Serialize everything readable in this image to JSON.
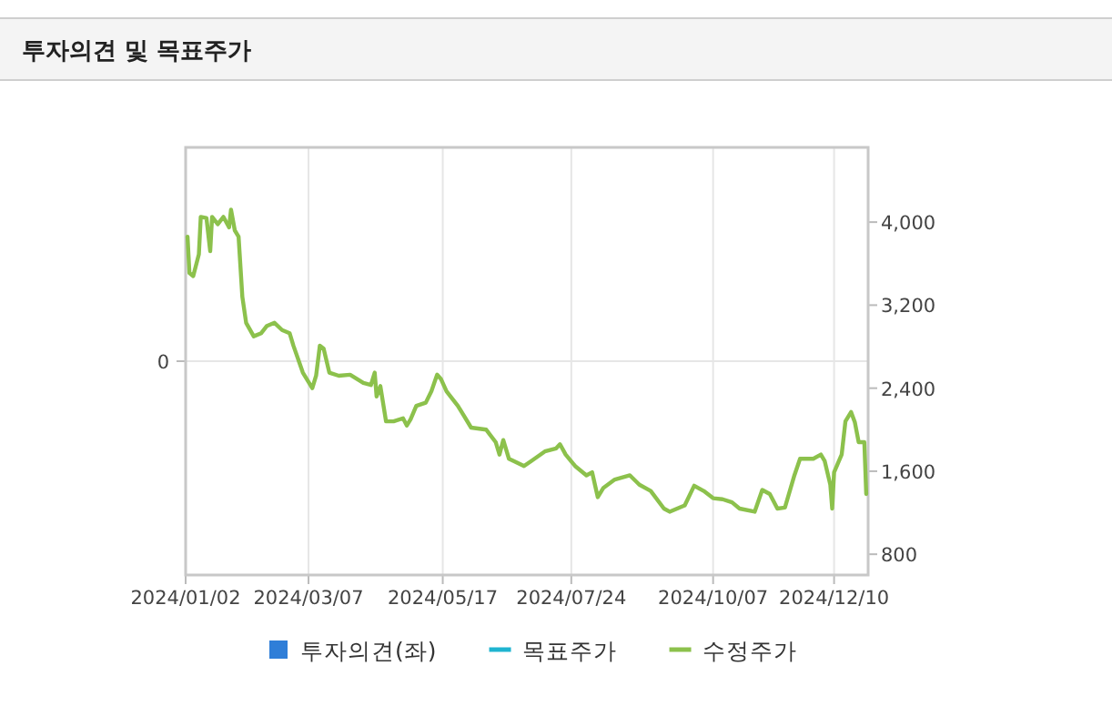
{
  "chart_data": {
    "type": "line",
    "title": "투자의견 및 목표주가",
    "annotations": [
      "0"
    ],
    "y2lim": [
      600,
      4720
    ],
    "y2ticks": [
      {
        "value": 800,
        "label": "800"
      },
      {
        "value": 1600,
        "label": "1,600"
      },
      {
        "value": 2400,
        "label": "2,400"
      },
      {
        "value": 3200,
        "label": "3,200"
      },
      {
        "value": 4000,
        "label": "4,000"
      }
    ],
    "xlim": [
      "2024-01-02",
      "2024-12-28"
    ],
    "xticks": [
      {
        "value": "2024-01-02",
        "label": "2024/01/02"
      },
      {
        "value": "2024-03-07",
        "label": "2024/03/07"
      },
      {
        "value": "2024-05-17",
        "label": "2024/05/17"
      },
      {
        "value": "2024-07-24",
        "label": "2024/07/24"
      },
      {
        "value": "2024-10-07",
        "label": "2024/10/07"
      },
      {
        "value": "2024-12-10",
        "label": "2024/12/10"
      }
    ],
    "grid": true,
    "legend": "bottom",
    "series": [
      {
        "name": "투자의견(좌)",
        "type": "bar",
        "color": "#2f7ed8"
      },
      {
        "name": "목표주가",
        "type": "line",
        "axis": "y2",
        "color": "#1fb4d0"
      },
      {
        "name": "수정주가",
        "axis": "y2",
        "color": "#8cc14c",
        "x": [
          "2024-01-03",
          "2024-01-04",
          "2024-01-06",
          "2024-01-09",
          "2024-01-10",
          "2024-01-13",
          "2024-01-15",
          "2024-01-16",
          "2024-01-19",
          "2024-01-22",
          "2024-01-25",
          "2024-01-26",
          "2024-01-28",
          "2024-01-30",
          "2024-02-01",
          "2024-02-03",
          "2024-02-07",
          "2024-02-11",
          "2024-02-14",
          "2024-02-18",
          "2024-02-22",
          "2024-02-26",
          "2024-02-28",
          "2024-03-04",
          "2024-03-09",
          "2024-03-11",
          "2024-03-13",
          "2024-03-15",
          "2024-03-18",
          "2024-03-23",
          "2024-03-29",
          "2024-04-05",
          "2024-04-09",
          "2024-04-11",
          "2024-04-12",
          "2024-04-14",
          "2024-04-17",
          "2024-04-21",
          "2024-04-26",
          "2024-04-28",
          "2024-04-30",
          "2024-05-03",
          "2024-05-08",
          "2024-05-11",
          "2024-05-14",
          "2024-05-16",
          "2024-05-19",
          "2024-05-25",
          "2024-06-01",
          "2024-06-09",
          "2024-06-14",
          "2024-06-16",
          "2024-06-18",
          "2024-06-21",
          "2024-06-29",
          "2024-07-03",
          "2024-07-10",
          "2024-07-16",
          "2024-07-18",
          "2024-07-21",
          "2024-07-26",
          "2024-08-01",
          "2024-08-04",
          "2024-08-07",
          "2024-08-10",
          "2024-08-16",
          "2024-08-24",
          "2024-08-29",
          "2024-09-04",
          "2024-09-11",
          "2024-09-14",
          "2024-09-22",
          "2024-09-27",
          "2024-10-02",
          "2024-10-07",
          "2024-10-12",
          "2024-10-17",
          "2024-10-21",
          "2024-10-29",
          "2024-11-02",
          "2024-11-06",
          "2024-11-10",
          "2024-11-14",
          "2024-11-19",
          "2024-11-22",
          "2024-11-29",
          "2024-12-03",
          "2024-12-05",
          "2024-12-08",
          "2024-12-09",
          "2024-12-10",
          "2024-12-14",
          "2024-12-16",
          "2024-12-19",
          "2024-12-21",
          "2024-12-23",
          "2024-12-26",
          "2024-12-27"
        ],
        "values": [
          3860,
          3510,
          3480,
          3690,
          4050,
          4040,
          3720,
          4050,
          3980,
          4050,
          3950,
          4120,
          3920,
          3860,
          3280,
          3030,
          2900,
          2930,
          3000,
          3030,
          2960,
          2930,
          2810,
          2550,
          2400,
          2520,
          2810,
          2780,
          2550,
          2520,
          2530,
          2450,
          2430,
          2550,
          2320,
          2420,
          2080,
          2080,
          2110,
          2040,
          2100,
          2230,
          2260,
          2370,
          2530,
          2490,
          2370,
          2230,
          2020,
          2000,
          1880,
          1760,
          1900,
          1720,
          1650,
          1700,
          1790,
          1820,
          1860,
          1760,
          1650,
          1560,
          1590,
          1350,
          1440,
          1520,
          1560,
          1470,
          1410,
          1240,
          1210,
          1270,
          1460,
          1410,
          1340,
          1330,
          1300,
          1240,
          1210,
          1420,
          1380,
          1240,
          1250,
          1560,
          1720,
          1720,
          1760,
          1700,
          1470,
          1240,
          1590,
          1760,
          2080,
          2170,
          2070,
          1880,
          1880,
          1380
        ]
      }
    ]
  }
}
